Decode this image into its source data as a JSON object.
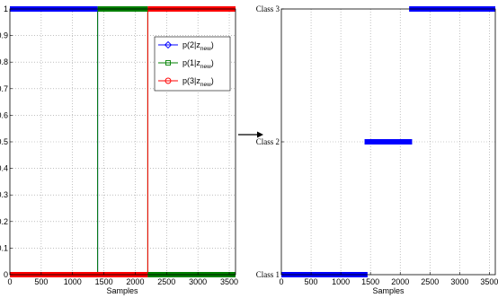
{
  "chart_data": [
    {
      "type": "line",
      "xlabel": "Samples",
      "ylabel": "",
      "xlim": [
        0,
        3600
      ],
      "ylim": [
        0,
        1
      ],
      "grid": true,
      "legend_position": "top-right",
      "x_ticks": [
        {
          "value": 0,
          "label": "0"
        },
        {
          "value": 500,
          "label": "500"
        },
        {
          "value": 1000,
          "label": "1000"
        },
        {
          "value": 1500,
          "label": "1500"
        },
        {
          "value": 2000,
          "label": "2000"
        },
        {
          "value": 2500,
          "label": "2500"
        },
        {
          "value": 3000,
          "label": "3000"
        },
        {
          "value": 3500,
          "label": "3500"
        }
      ],
      "y_ticks": [
        {
          "value": 0,
          "label": "0"
        },
        {
          "value": 0.1,
          "label": "0.1"
        },
        {
          "value": 0.2,
          "label": "0.2"
        },
        {
          "value": 0.3,
          "label": "0.3"
        },
        {
          "value": 0.4,
          "label": "0.4"
        },
        {
          "value": 0.5,
          "label": "0.5"
        },
        {
          "value": 0.6,
          "label": "0.6"
        },
        {
          "value": 0.7,
          "label": "0.7"
        },
        {
          "value": 0.8,
          "label": "0.8"
        },
        {
          "value": 0.9,
          "label": "0.9"
        },
        {
          "value": 1,
          "label": "1"
        }
      ],
      "series": [
        {
          "name": "p(2|z",
          "name_sub": "new",
          "name_suffix": ")",
          "color": "#0000ff",
          "marker": "diamond",
          "points": [
            [
              0,
              1
            ],
            [
              1400,
              1
            ],
            [
              1400,
              0
            ],
            [
              3600,
              0
            ]
          ]
        },
        {
          "name": "p(1|z",
          "name_sub": "new",
          "name_suffix": ")",
          "color": "#008000",
          "marker": "square",
          "points": [
            [
              0,
              0
            ],
            [
              1400,
              0
            ],
            [
              1400,
              1
            ],
            [
              2200,
              1
            ],
            [
              2200,
              0
            ],
            [
              3600,
              0
            ]
          ]
        },
        {
          "name": "p(3|z",
          "name_sub": "new",
          "name_suffix": ")",
          "color": "#ff0000",
          "marker": "circle",
          "points": [
            [
              0,
              0
            ],
            [
              2200,
              0
            ],
            [
              2200,
              1
            ],
            [
              3600,
              1
            ]
          ]
        }
      ],
      "thick_segments": [
        {
          "series": 0,
          "x0": 0,
          "x1": 1400,
          "y": 1
        },
        {
          "series": 1,
          "x0": 1400,
          "x1": 2200,
          "y": 1
        },
        {
          "series": 2,
          "x0": 2200,
          "x1": 3600,
          "y": 1
        },
        {
          "series": 2,
          "x0": 0,
          "x1": 2200,
          "y": 0
        },
        {
          "series": 1,
          "x0": 2200,
          "x1": 3600,
          "y": 0
        }
      ]
    },
    {
      "type": "line",
      "xlabel": "Samples",
      "ylabel": "",
      "xlim": [
        0,
        3600
      ],
      "ylim": [
        1,
        3
      ],
      "grid": true,
      "color": "#0000ff",
      "x_ticks": [
        {
          "value": 0,
          "label": "0"
        },
        {
          "value": 500,
          "label": "500"
        },
        {
          "value": 1000,
          "label": "1000"
        },
        {
          "value": 1500,
          "label": "1500"
        },
        {
          "value": 2000,
          "label": "2000"
        },
        {
          "value": 2500,
          "label": "2500"
        },
        {
          "value": 3000,
          "label": "3000"
        },
        {
          "value": 3500,
          "label": "3500"
        }
      ],
      "y_ticks": [
        {
          "value": 1,
          "label": "Class 1"
        },
        {
          "value": 2,
          "label": "Class 2"
        },
        {
          "value": 3,
          "label": "Class 3"
        }
      ],
      "segments": [
        {
          "x0": 0,
          "x1": 1450,
          "y": 1
        },
        {
          "x0": 1400,
          "x1": 2200,
          "y": 2
        },
        {
          "x0": 2150,
          "x1": 3600,
          "y": 3
        }
      ]
    }
  ]
}
